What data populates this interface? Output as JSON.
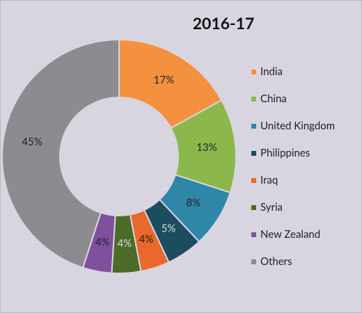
{
  "chart_data": {
    "type": "donut",
    "title": "2016-17",
    "categories": [
      "India",
      "China",
      "United Kingdom",
      "Philippines",
      "Iraq",
      "Syria",
      "New Zealand",
      "Others"
    ],
    "values": [
      17,
      13,
      8,
      5,
      4,
      4,
      4,
      45
    ],
    "value_labels": [
      "17%",
      "13%",
      "8%",
      "5%",
      "4%",
      "4%",
      "4%",
      "45%"
    ],
    "colors": [
      "#f4913f",
      "#8cb84b",
      "#2f87a8",
      "#1c4d5e",
      "#e8692b",
      "#4b6b26",
      "#7e509d",
      "#8d8b90"
    ],
    "legend": "right"
  }
}
